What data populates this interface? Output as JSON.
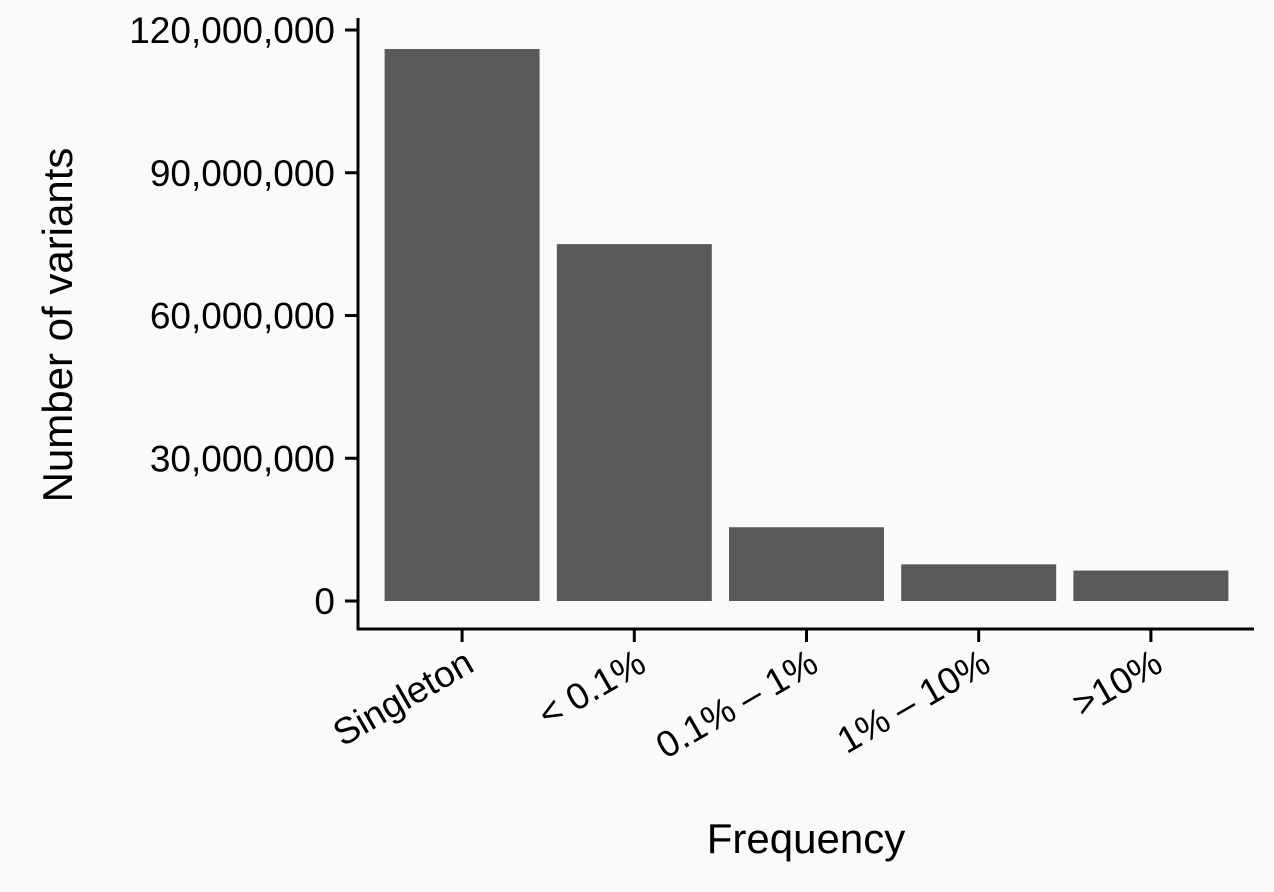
{
  "chart_data": {
    "type": "bar",
    "title": "",
    "xlabel": "Frequency",
    "ylabel": "Number of variants",
    "categories": [
      "Singleton",
      "< 0.1%",
      "0.1% – 1%",
      "1% – 10%",
      ">10%"
    ],
    "values": [
      116000000,
      75000000,
      15500000,
      7700000,
      6400000
    ],
    "ylim": [
      0,
      120000000
    ],
    "yticks": [
      0,
      30000000,
      60000000,
      90000000,
      120000000
    ],
    "ytick_labels": [
      "0",
      "30,000,000",
      "60,000,000",
      "90,000,000",
      "120,000,000"
    ],
    "grid": false,
    "legend": "none",
    "bar_color": "#595959",
    "axis_color": "#000000",
    "background": "#fafafa"
  }
}
